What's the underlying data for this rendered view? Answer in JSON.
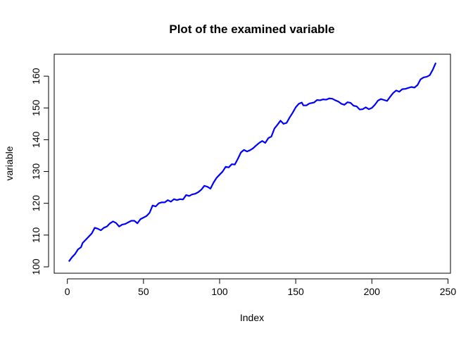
{
  "chart_data": {
    "type": "line",
    "title": "Plot of the examined variable",
    "x_label": "Index",
    "y_label": "variable",
    "x": [
      1,
      3,
      5,
      7,
      9,
      10,
      12,
      14,
      16,
      18,
      20,
      22,
      24,
      26,
      28,
      30,
      32,
      34,
      36,
      38,
      40,
      42,
      44,
      46,
      48,
      50,
      52,
      54,
      56,
      58,
      60,
      62,
      64,
      66,
      68,
      70,
      72,
      74,
      76,
      78,
      80,
      82,
      84,
      86,
      88,
      90,
      92,
      94,
      96,
      98,
      100,
      102,
      104,
      106,
      108,
      110,
      112,
      114,
      116,
      118,
      120,
      122,
      124,
      126,
      128,
      130,
      132,
      134,
      136,
      138,
      140,
      142,
      144,
      146,
      148,
      150,
      152,
      154,
      155,
      157,
      159,
      162,
      164,
      166,
      168,
      170,
      172,
      174,
      176,
      178,
      180,
      182,
      184,
      186,
      188,
      190,
      192,
      194,
      196,
      198,
      200,
      202,
      204,
      206,
      208,
      210,
      212,
      214,
      216,
      218,
      220,
      222,
      224,
      226,
      228,
      230,
      232,
      234,
      236,
      238,
      240,
      242
    ],
    "series": [
      {
        "name": "variable",
        "color": "#0000ff",
        "values": [
          101.7,
          103,
          104,
          105.5,
          106.2,
          107.5,
          108.5,
          109.5,
          110.5,
          112.3,
          112,
          111.5,
          112.3,
          112.7,
          113.7,
          114.3,
          113.8,
          112.7,
          113.3,
          113.5,
          114,
          114.5,
          114.5,
          113.7,
          115,
          115.5,
          116,
          117,
          119.3,
          119,
          120,
          120.3,
          120.3,
          121,
          120.5,
          121.3,
          121,
          121.3,
          121.2,
          122.6,
          122.3,
          122.8,
          123,
          123.5,
          124.3,
          125.5,
          125.2,
          124.6,
          126.5,
          128,
          129,
          130,
          131.5,
          131.3,
          132.3,
          132.2,
          134,
          136,
          136.8,
          136.3,
          136.7,
          137.3,
          138.2,
          139,
          139.6,
          139,
          140.5,
          141,
          143.5,
          144.7,
          146,
          145,
          145.3,
          147,
          148.5,
          150.2,
          151.3,
          151.7,
          150.8,
          150.8,
          151.4,
          151.7,
          152.5,
          152.4,
          152.7,
          152.6,
          153,
          152.9,
          152.4,
          152,
          151.3,
          151,
          151.8,
          151.6,
          150.7,
          150.5,
          149.5,
          149.6,
          150.2,
          149.6,
          150,
          151,
          152.3,
          152.8,
          152.5,
          152.2,
          153.5,
          154.7,
          155.5,
          155.1,
          155.9,
          156,
          156.3,
          156.6,
          156.4,
          157.2,
          159,
          159.6,
          159.8,
          160.3,
          162,
          164.2
        ]
      }
    ],
    "xlim": [
      -8.64,
      251.64
    ],
    "ylim": [
      98.0,
      166.9
    ],
    "xticks": [
      0,
      50,
      100,
      150,
      200,
      250
    ],
    "yticks": [
      100,
      110,
      120,
      130,
      140,
      150,
      160
    ]
  }
}
